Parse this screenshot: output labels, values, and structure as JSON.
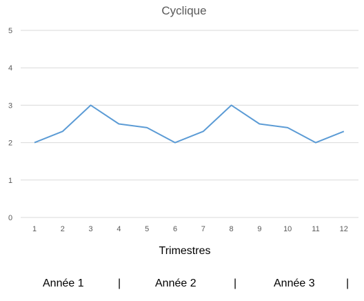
{
  "chart_data": {
    "type": "line",
    "title": "Cyclique",
    "xlabel": "Trimestres",
    "ylabel": "",
    "categories": [
      "1",
      "2",
      "3",
      "4",
      "5",
      "6",
      "7",
      "8",
      "9",
      "10",
      "11",
      "12"
    ],
    "series": [
      {
        "values": [
          2.0,
          2.3,
          3.0,
          2.5,
          2.4,
          2.0,
          2.3,
          3.0,
          2.5,
          2.4,
          2.0,
          2.3
        ],
        "color": "#5b9bd5"
      }
    ],
    "ylim": [
      0,
      5
    ],
    "yticks": [
      0,
      1,
      2,
      3,
      4,
      5
    ],
    "grid": true,
    "legend": "none"
  },
  "footer": {
    "year1": "Année 1",
    "year2": "Année 2",
    "year3": "Année 3",
    "separator": "|"
  }
}
